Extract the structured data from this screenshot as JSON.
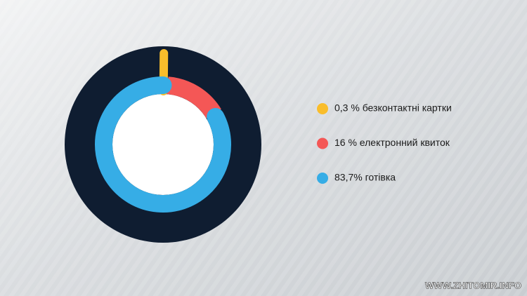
{
  "chart_data": {
    "type": "pie",
    "categories": [
      "0,3 % безконтактні картки",
      "16 % електронний квиток",
      "83,7% готівка"
    ],
    "values": [
      0.3,
      16,
      83.7
    ],
    "colors": [
      "#f9bd2b",
      "#f45756",
      "#36ade6"
    ]
  },
  "watermark": "WWW.ZHITOMIR.INFO"
}
